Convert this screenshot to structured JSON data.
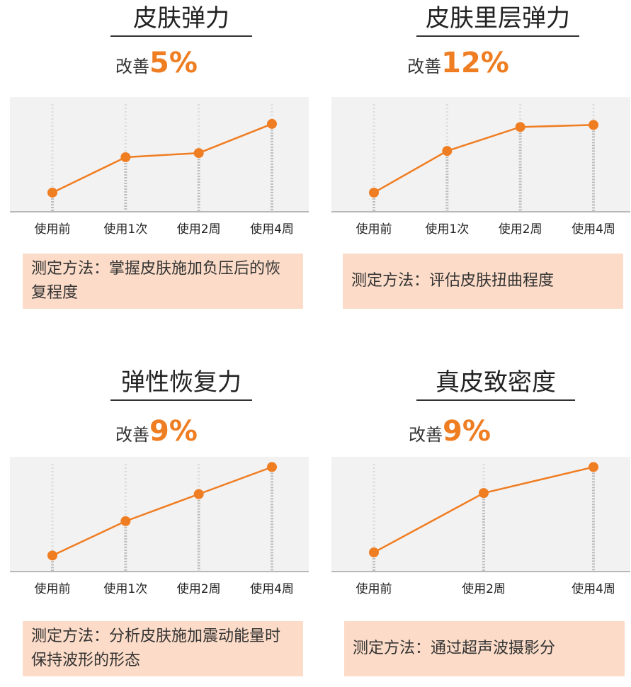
{
  "colors": {
    "line": "#ef7d22",
    "accent": "#ef7d22",
    "chart_bg": "#f3f2f2",
    "baseline": "#b8b8b8",
    "dash": "#bdbdbd",
    "method_bg": "#fcdcc8"
  },
  "panels": [
    {
      "title": "皮肤弹力",
      "improve_label": "改善",
      "improve_value": "5%",
      "method": "测定方法：掌握皮肤施加负压后的恢复程度"
    },
    {
      "title": "皮肤里层弹力",
      "improve_label": "改善",
      "improve_value": "12%",
      "method": "测定方法：评估皮肤扭曲程度"
    },
    {
      "title": "弹性恢复力",
      "improve_label": "改善",
      "improve_value": "9%",
      "method": "测定方法：分析皮肤施加震动能量时保持波形的形态"
    },
    {
      "title": "真皮致密度",
      "improve_label": "改善",
      "improve_value": "9%",
      "method": "测定方法：通过超声波摄影分"
    }
  ],
  "chart_data": [
    {
      "type": "line",
      "categories": [
        "使用前",
        "使用1次",
        "使用2周",
        "使用4周"
      ],
      "values": [
        0.15,
        0.49,
        0.53,
        0.81
      ],
      "ylim": [
        0,
        1
      ]
    },
    {
      "type": "line",
      "categories": [
        "使用前",
        "使用1次",
        "使用2周",
        "使用4周"
      ],
      "values": [
        0.15,
        0.55,
        0.78,
        0.8
      ],
      "ylim": [
        0,
        1
      ]
    },
    {
      "type": "line",
      "categories": [
        "使用前",
        "使用1次",
        "使用2周",
        "使用4周"
      ],
      "values": [
        0.12,
        0.45,
        0.71,
        0.97
      ],
      "ylim": [
        0,
        1
      ]
    },
    {
      "type": "line",
      "categories": [
        "使用前",
        "使用2周",
        "使用4周"
      ],
      "values": [
        0.15,
        0.72,
        0.97
      ],
      "ylim": [
        0,
        1
      ]
    }
  ]
}
